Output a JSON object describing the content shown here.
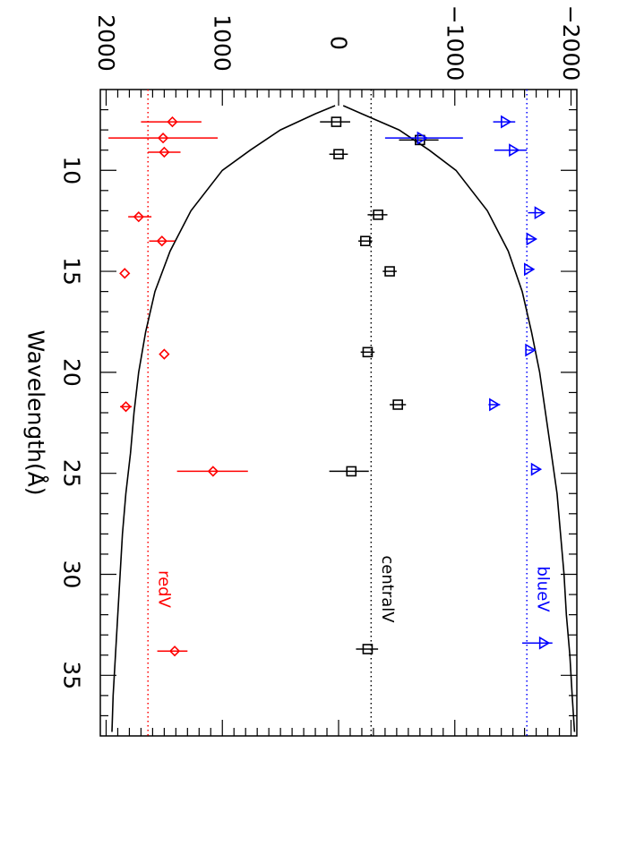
{
  "chart_data": {
    "type": "scatter",
    "orientation": "rotated-90-clockwise",
    "title": "",
    "xlabel": "Wavelength(Å)",
    "ylabel": "",
    "xlim": [
      6,
      38
    ],
    "ylim": [
      -2050,
      2050
    ],
    "x_ticks": [
      10,
      15,
      20,
      25,
      30,
      35
    ],
    "y_ticks": [
      -2000,
      -1000,
      0,
      1000,
      2000
    ],
    "x_tick_labels": [
      "10",
      "15",
      "20",
      "25",
      "30",
      "35"
    ],
    "y_tick_labels": [
      "−2000",
      "−1000",
      "0",
      "1000",
      "2000"
    ],
    "grid": false,
    "series": [
      {
        "label": "redV",
        "color": "#ff0000",
        "marker": "diamond",
        "reference_value": 1640,
        "points": [
          {
            "x": 7.6,
            "y": 1430,
            "err_low": 1180,
            "err_high": 1700
          },
          {
            "x": 8.4,
            "y": 1510,
            "err_low": 1040,
            "err_high": 1980
          },
          {
            "x": 9.1,
            "y": 1500,
            "err_low": 1360,
            "err_high": 1640
          },
          {
            "x": 12.3,
            "y": 1720,
            "err_low": 1610,
            "err_high": 1810
          },
          {
            "x": 13.5,
            "y": 1520,
            "err_low": 1410,
            "err_high": 1630
          },
          {
            "x": 15.1,
            "y": 1840,
            "err_low": 1840,
            "err_high": 1840
          },
          {
            "x": 19.1,
            "y": 1500,
            "err_low": 1500,
            "err_high": 1500
          },
          {
            "x": 21.7,
            "y": 1830,
            "err_low": 1780,
            "err_high": 1880
          },
          {
            "x": 24.9,
            "y": 1080,
            "err_low": 780,
            "err_high": 1390
          },
          {
            "x": 33.8,
            "y": 1410,
            "err_low": 1300,
            "err_high": 1560
          }
        ]
      },
      {
        "label": "centralV",
        "color": "#000000",
        "marker": "square",
        "reference_value": -280,
        "points": [
          {
            "x": 7.6,
            "y": 20,
            "err_low": -100,
            "err_high": 160
          },
          {
            "x": 8.5,
            "y": -700,
            "err_low": -860,
            "err_high": -520
          },
          {
            "x": 9.2,
            "y": 0,
            "err_low": -80,
            "err_high": 80
          },
          {
            "x": 12.2,
            "y": -340,
            "err_low": -420,
            "err_high": -250
          },
          {
            "x": 13.5,
            "y": -230,
            "err_low": -290,
            "err_high": -170
          },
          {
            "x": 15.0,
            "y": -440,
            "err_low": -500,
            "err_high": -380
          },
          {
            "x": 19.0,
            "y": -250,
            "err_low": -310,
            "err_high": -190
          },
          {
            "x": 21.6,
            "y": -510,
            "err_low": -580,
            "err_high": -440
          },
          {
            "x": 24.9,
            "y": -110,
            "err_low": -260,
            "err_high": 80
          },
          {
            "x": 33.7,
            "y": -250,
            "err_low": -340,
            "err_high": -150
          }
        ]
      },
      {
        "label": "blueV",
        "color": "#0000ff",
        "marker": "triangle",
        "reference_value": -1620,
        "points": [
          {
            "x": 7.6,
            "y": -1440,
            "err_low": -1520,
            "err_high": -1330
          },
          {
            "x": 8.4,
            "y": -720,
            "err_low": -1070,
            "err_high": -400
          },
          {
            "x": 9.0,
            "y": -1510,
            "err_low": -1620,
            "err_high": -1340
          },
          {
            "x": 12.1,
            "y": -1730,
            "err_low": -1770,
            "err_high": -1630
          },
          {
            "x": 13.4,
            "y": -1660,
            "err_low": -1700,
            "err_high": -1610
          },
          {
            "x": 14.9,
            "y": -1640,
            "err_low": -1670,
            "err_high": -1610
          },
          {
            "x": 18.9,
            "y": -1650,
            "err_low": -1670,
            "err_high": -1630
          },
          {
            "x": 21.6,
            "y": -1340,
            "err_low": -1390,
            "err_high": -1290
          },
          {
            "x": 24.8,
            "y": -1700,
            "err_low": -1740,
            "err_high": -1660
          },
          {
            "x": 33.4,
            "y": -1770,
            "err_low": -1840,
            "err_high": -1580
          }
        ]
      }
    ],
    "envelope": {
      "color": "#000000",
      "upper": [
        [
          6.8,
          30
        ],
        [
          7.2,
          200
        ],
        [
          8,
          500
        ],
        [
          9,
          760
        ],
        [
          10,
          1000
        ],
        [
          12,
          1270
        ],
        [
          14,
          1450
        ],
        [
          16,
          1580
        ],
        [
          18,
          1660
        ],
        [
          20,
          1720
        ],
        [
          22,
          1760
        ],
        [
          24,
          1790
        ],
        [
          26,
          1830
        ],
        [
          28,
          1860
        ],
        [
          30,
          1880
        ],
        [
          32,
          1900
        ],
        [
          34,
          1920
        ],
        [
          36,
          1940
        ],
        [
          37.8,
          1950
        ]
      ],
      "lower": [
        [
          6.8,
          -40
        ],
        [
          7.2,
          -200
        ],
        [
          8,
          -520
        ],
        [
          9,
          -780
        ],
        [
          10,
          -1010
        ],
        [
          12,
          -1280
        ],
        [
          14,
          -1460
        ],
        [
          16,
          -1580
        ],
        [
          18,
          -1660
        ],
        [
          20,
          -1730
        ],
        [
          22,
          -1780
        ],
        [
          24,
          -1830
        ],
        [
          26,
          -1880
        ],
        [
          28,
          -1910
        ],
        [
          30,
          -1940
        ],
        [
          32,
          -1960
        ],
        [
          34,
          -1990
        ],
        [
          36,
          -2010
        ],
        [
          37.8,
          -2030
        ]
      ]
    }
  }
}
